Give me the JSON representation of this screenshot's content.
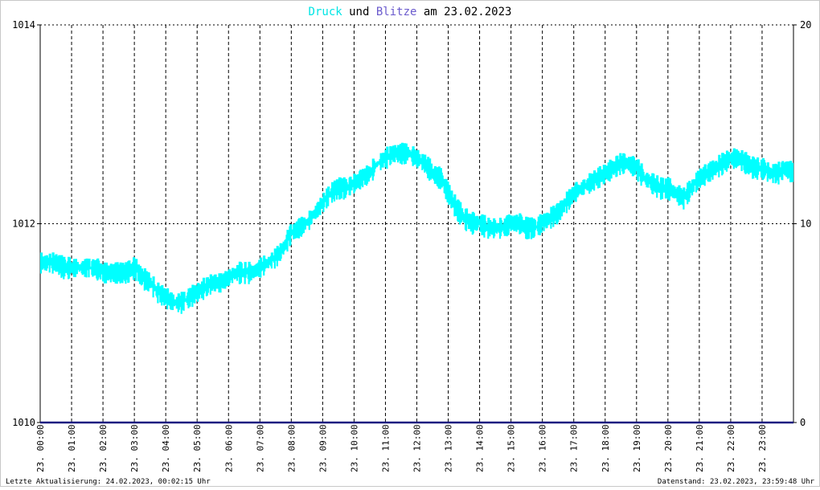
{
  "chart_data": {
    "type": "line",
    "title_parts": [
      {
        "text": "Druck",
        "color": "#00e5e5"
      },
      {
        "text": " und ",
        "color": "#000000"
      },
      {
        "text": "Blitze",
        "color": "#6a5acd"
      },
      {
        "text": " am 23.02.2023",
        "color": "#000000"
      }
    ],
    "y_left": {
      "lim": [
        1010,
        1014
      ],
      "ticks": [
        "1010",
        "1012",
        "1014"
      ]
    },
    "y_right": {
      "lim": [
        0,
        20
      ],
      "ticks": [
        "0",
        "10",
        "20"
      ]
    },
    "x_ticks": [
      "23. 00:00",
      "23. 01:00",
      "23. 02:00",
      "23. 03:00",
      "23. 04:00",
      "23. 05:00",
      "23. 06:00",
      "23. 07:00",
      "23. 08:00",
      "23. 09:00",
      "23. 10:00",
      "23. 11:00",
      "23. 12:00",
      "23. 13:00",
      "23. 14:00",
      "23. 15:00",
      "23. 16:00",
      "23. 17:00",
      "23. 18:00",
      "23. 19:00",
      "23. 20:00",
      "23. 21:00",
      "23. 22:00",
      "23. 23:00"
    ],
    "x_range_hours": [
      0,
      24
    ],
    "grid": true,
    "series": [
      {
        "name": "Druck",
        "color": "#00ffff",
        "axis": "left",
        "x_hours": [
          0,
          0.25,
          0.5,
          0.75,
          1,
          1.25,
          1.5,
          1.75,
          2,
          2.25,
          2.5,
          2.75,
          3,
          3.25,
          3.5,
          3.75,
          4,
          4.25,
          4.5,
          4.75,
          5,
          5.25,
          5.5,
          5.75,
          6,
          6.25,
          6.5,
          6.75,
          7,
          7.25,
          7.5,
          7.75,
          8,
          8.25,
          8.5,
          8.75,
          9,
          9.25,
          9.5,
          9.75,
          10,
          10.25,
          10.5,
          10.75,
          11,
          11.25,
          11.5,
          11.75,
          12,
          12.25,
          12.5,
          12.75,
          13,
          13.25,
          13.5,
          13.75,
          14,
          14.25,
          14.5,
          14.75,
          15,
          15.25,
          15.5,
          15.75,
          16,
          16.25,
          16.5,
          16.75,
          17,
          17.25,
          17.5,
          17.75,
          18,
          18.25,
          18.5,
          18.75,
          19,
          19.25,
          19.5,
          19.75,
          20,
          20.25,
          20.5,
          20.75,
          21,
          21.25,
          21.5,
          21.75,
          22,
          22.25,
          22.5,
          22.75,
          23,
          23.25,
          23.5,
          23.75,
          24
        ],
        "values": [
          1011.6,
          1011.6,
          1011.6,
          1011.55,
          1011.55,
          1011.55,
          1011.55,
          1011.55,
          1011.5,
          1011.5,
          1011.5,
          1011.5,
          1011.55,
          1011.45,
          1011.4,
          1011.3,
          1011.25,
          1011.2,
          1011.2,
          1011.25,
          1011.3,
          1011.35,
          1011.4,
          1011.4,
          1011.45,
          1011.5,
          1011.5,
          1011.5,
          1011.55,
          1011.6,
          1011.65,
          1011.75,
          1011.9,
          1011.95,
          1012.0,
          1012.1,
          1012.2,
          1012.3,
          1012.35,
          1012.35,
          1012.4,
          1012.45,
          1012.5,
          1012.6,
          1012.65,
          1012.7,
          1012.7,
          1012.7,
          1012.65,
          1012.6,
          1012.5,
          1012.45,
          1012.3,
          1012.15,
          1012.05,
          1012.0,
          1012.0,
          1011.95,
          1011.95,
          1011.95,
          1012.0,
          1012.0,
          1011.95,
          1011.95,
          1012.0,
          1012.05,
          1012.1,
          1012.2,
          1012.3,
          1012.35,
          1012.4,
          1012.45,
          1012.5,
          1012.55,
          1012.6,
          1012.6,
          1012.55,
          1012.45,
          1012.4,
          1012.35,
          1012.35,
          1012.3,
          1012.25,
          1012.35,
          1012.45,
          1012.5,
          1012.55,
          1012.6,
          1012.65,
          1012.65,
          1012.6,
          1012.55,
          1012.55,
          1012.5,
          1012.5,
          1012.55,
          1012.5
        ]
      },
      {
        "name": "Blitze",
        "color": "#1a1a80",
        "axis": "right",
        "x_hours": [
          0,
          24
        ],
        "values": [
          0,
          0
        ]
      }
    ]
  },
  "footer": {
    "left": "Letzte Aktualisierung: 24.02.2023, 00:02:15 Uhr",
    "right": "Datenstand: 23.02.2023, 23:59:48 Uhr"
  }
}
